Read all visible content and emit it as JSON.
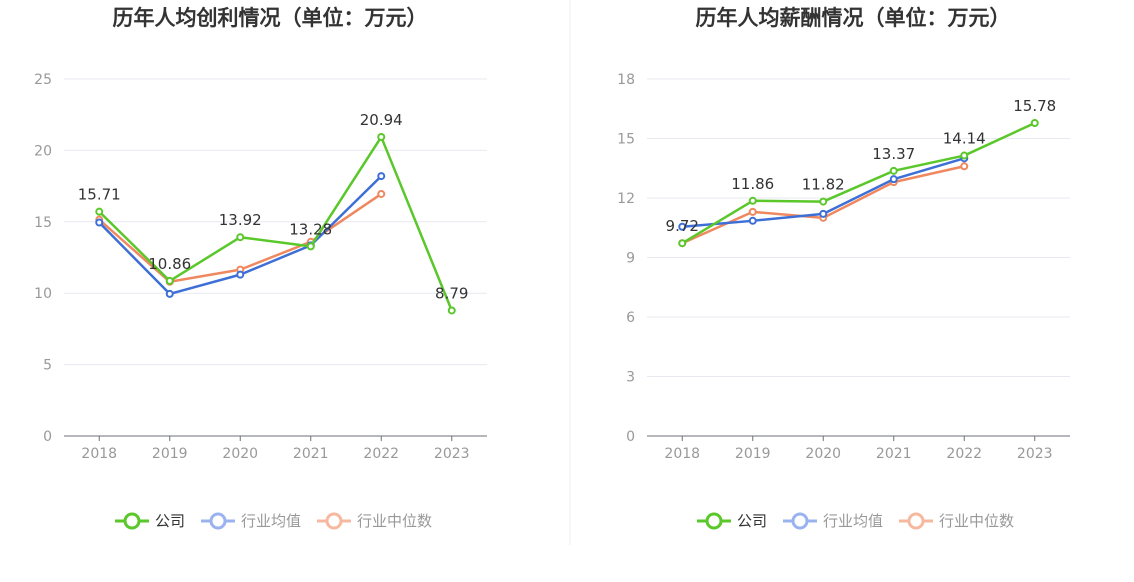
{
  "chart_data": [
    {
      "type": "line",
      "title": "历年人均创利情况（单位：万元）",
      "categories": [
        "2018",
        "2019",
        "2020",
        "2021",
        "2022",
        "2023"
      ],
      "ylim": [
        0,
        25
      ],
      "yticks": [
        "0",
        "5",
        "10",
        "15",
        "20",
        "25"
      ],
      "grid": true,
      "legend": "bottom",
      "series": [
        {
          "name": "公司",
          "color": "#5ac72a",
          "values": [
            15.71,
            10.86,
            13.92,
            13.28,
            20.94,
            8.79
          ],
          "labels": [
            "15.71",
            "10.86",
            "13.92",
            "13.28",
            "20.94",
            "8.79"
          ]
        },
        {
          "name": "行业均值",
          "color": "#3d6fd6",
          "legend_color": "#9ab3ef",
          "values": [
            14.95,
            9.95,
            11.3,
            13.35,
            18.2,
            null
          ]
        },
        {
          "name": "行业中位数",
          "color": "#f0885f",
          "legend_color": "#f6b9a0",
          "values": [
            15.15,
            10.8,
            11.65,
            13.6,
            16.95,
            null
          ]
        }
      ]
    },
    {
      "type": "line",
      "title": "历年人均薪酬情况（单位：万元）",
      "categories": [
        "2018",
        "2019",
        "2020",
        "2021",
        "2022",
        "2023"
      ],
      "ylim": [
        0,
        18
      ],
      "yticks": [
        "0",
        "3",
        "6",
        "9",
        "12",
        "15",
        "18"
      ],
      "grid": true,
      "legend": "bottom",
      "series": [
        {
          "name": "公司",
          "color": "#5ac72a",
          "values": [
            9.72,
            11.86,
            11.82,
            13.37,
            14.14,
            15.78
          ],
          "labels": [
            "9.72",
            "11.86",
            "11.82",
            "13.37",
            "14.14",
            "15.78"
          ]
        },
        {
          "name": "行业均值",
          "color": "#3d6fd6",
          "legend_color": "#9ab3ef",
          "values": [
            10.55,
            10.85,
            11.2,
            12.95,
            14.0,
            null
          ]
        },
        {
          "name": "行业中位数",
          "color": "#f0885f",
          "legend_color": "#f6b9a0",
          "values": [
            9.72,
            11.3,
            11.0,
            12.8,
            13.6,
            null
          ]
        }
      ]
    }
  ]
}
